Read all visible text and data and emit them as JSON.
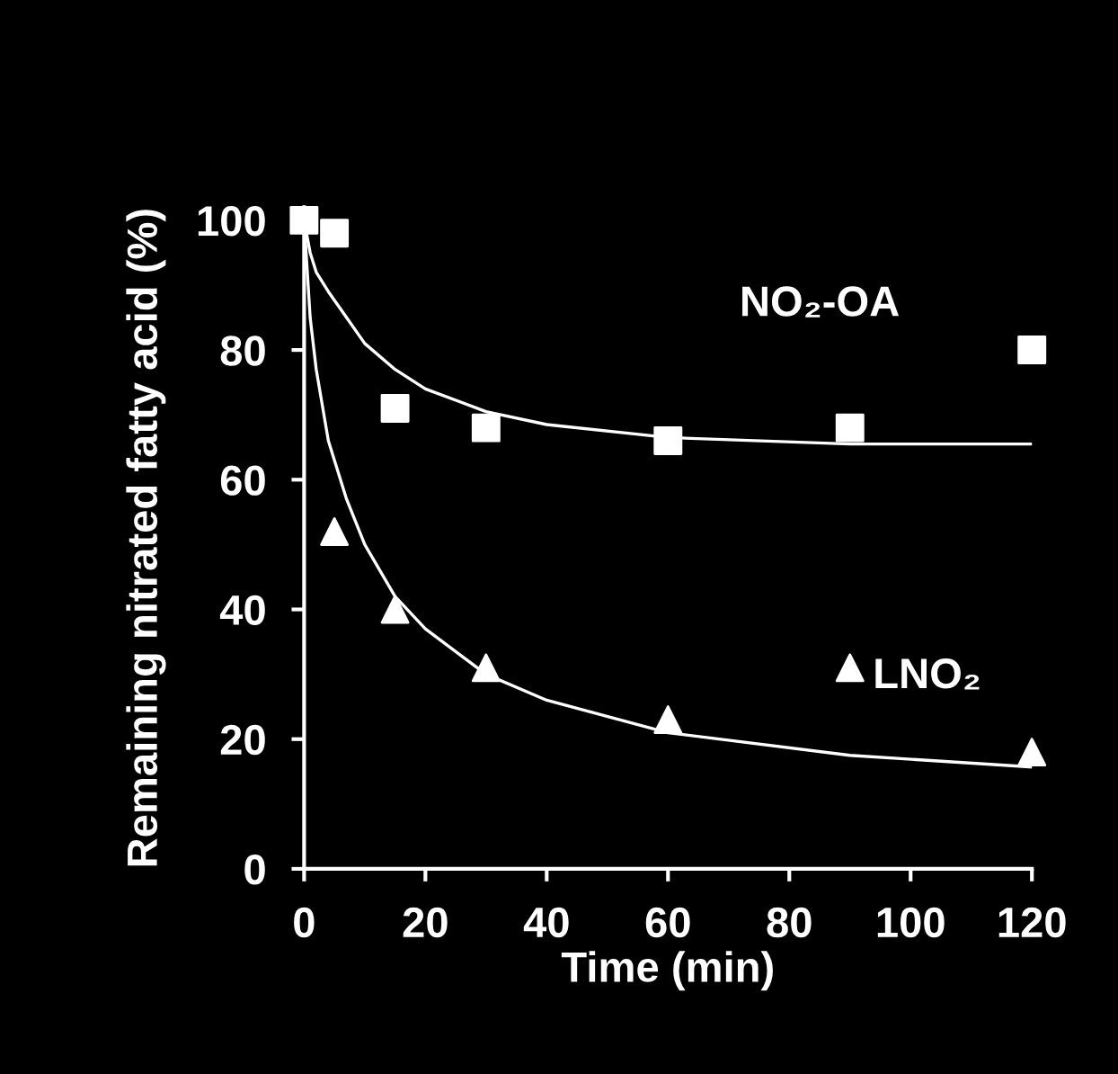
{
  "chart_data": {
    "type": "scatter",
    "xlabel": "Time (min)",
    "ylabel": "Remaining nitrated fatty acid (%)",
    "xlim": [
      0,
      120
    ],
    "ylim": [
      0,
      102
    ],
    "xticks": [
      0,
      20,
      40,
      60,
      80,
      100,
      120
    ],
    "yticks": [
      0,
      20,
      40,
      60,
      80,
      100
    ],
    "grid": false,
    "legend": false,
    "series": [
      {
        "name": "NO₂-OA",
        "color": "#ffffff",
        "marker": "square",
        "x": [
          0,
          5,
          15,
          30,
          60,
          90,
          120
        ],
        "values": [
          100,
          98,
          71,
          68,
          66,
          68,
          80
        ]
      },
      {
        "name": "LNO₂",
        "color": "#ffffff",
        "marker": "triangle",
        "x": [
          5,
          15,
          30,
          60,
          90,
          120
        ],
        "values": [
          52,
          40,
          31,
          23,
          31,
          18
        ]
      },
      {
        "type": "line",
        "color": "#ffffff",
        "marker": "none",
        "x": [
          0,
          1,
          2,
          4,
          7,
          10,
          15,
          20,
          30,
          40,
          60,
          90,
          120
        ],
        "values": [
          100,
          95,
          92,
          89,
          85,
          81,
          77,
          74,
          70.5,
          68.5,
          66.5,
          65.5,
          65.5
        ]
      },
      {
        "type": "line",
        "color": "#ffffff",
        "marker": "none",
        "x": [
          0,
          1,
          2,
          4,
          7,
          10,
          15,
          20,
          30,
          40,
          60,
          90,
          120
        ],
        "values": [
          100,
          85,
          77,
          66,
          57,
          50,
          42,
          37,
          30,
          26,
          21,
          17.5,
          15.7
        ]
      }
    ]
  }
}
